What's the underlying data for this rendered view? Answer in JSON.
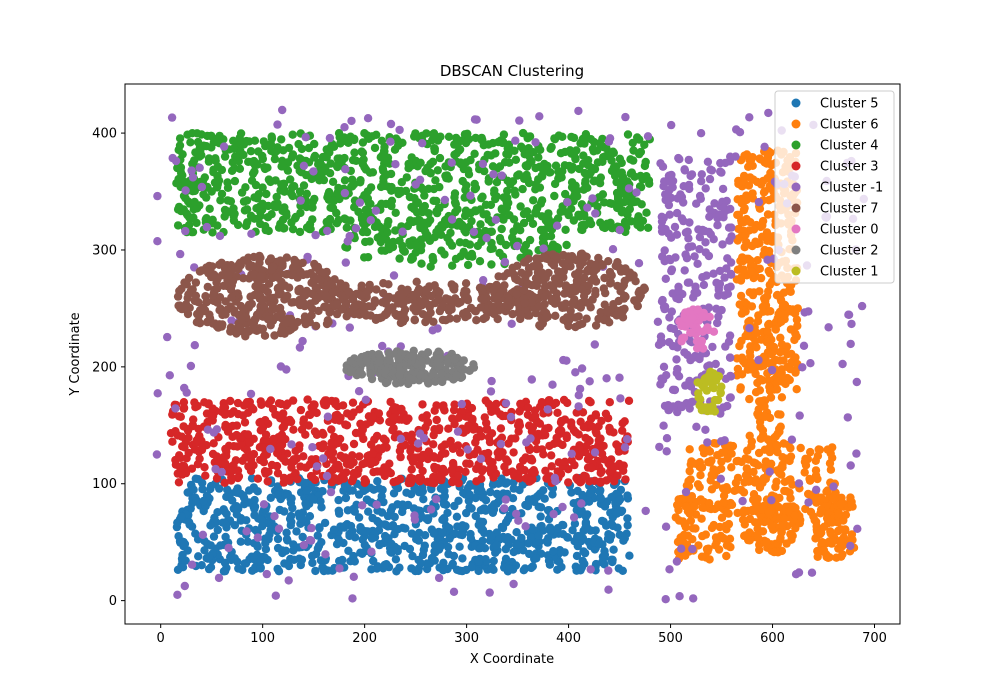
{
  "chart_data": {
    "type": "scatter",
    "title": "DBSCAN Clustering",
    "xlabel": "X Coordinate",
    "ylabel": "Y Coordinate",
    "xlim": [
      -35,
      725
    ],
    "ylim": [
      -20,
      442
    ],
    "xticks": [
      0,
      100,
      200,
      300,
      400,
      500,
      600,
      700
    ],
    "yticks": [
      0,
      100,
      200,
      300,
      400
    ],
    "grid": false,
    "legend_position": "top-right",
    "series": [
      {
        "name": "Cluster 5",
        "color": "#1f77b4",
        "regions": [
          {
            "shape": "rect",
            "x": [
              15,
              460
            ],
            "y": [
              25,
              105
            ],
            "count": 900
          }
        ]
      },
      {
        "name": "Cluster 6",
        "color": "#ff7f0e",
        "regions": [
          {
            "shape": "rect",
            "x": [
              565,
              625
            ],
            "y": [
              180,
              385
            ],
            "count": 330
          },
          {
            "shape": "rect",
            "x": [
              575,
              610
            ],
            "y": [
              125,
              250
            ],
            "count": 80
          },
          {
            "shape": "rect",
            "x": [
              515,
              665
            ],
            "y": [
              70,
              135
            ],
            "count": 200
          },
          {
            "shape": "rect",
            "x": [
              505,
              560
            ],
            "y": [
              35,
              90
            ],
            "count": 90
          },
          {
            "shape": "rect",
            "x": [
              640,
              680
            ],
            "y": [
              35,
              90
            ],
            "count": 90
          },
          {
            "shape": "ellipse",
            "cx": 598,
            "cy": 65,
            "rx": 30,
            "ry": 25,
            "count": 100
          }
        ]
      },
      {
        "name": "Cluster 4",
        "color": "#2ca02c",
        "regions": [
          {
            "shape": "rect",
            "x": [
              15,
              480
            ],
            "y": [
              315,
              400
            ],
            "count": 950
          },
          {
            "shape": "ellipse",
            "cx": 290,
            "cy": 305,
            "rx": 110,
            "ry": 20,
            "count": 130
          }
        ]
      },
      {
        "name": "Cluster 3",
        "color": "#d62728",
        "regions": [
          {
            "shape": "rect",
            "x": [
              10,
              460
            ],
            "y": [
              100,
              172
            ],
            "count": 800
          }
        ]
      },
      {
        "name": "Cluster -1",
        "color": "#9467bd",
        "regions": [
          {
            "shape": "rect",
            "x": [
              -5,
              690
            ],
            "y": [
              0,
              420
            ],
            "count": 330
          },
          {
            "shape": "rect",
            "x": [
              490,
              560
            ],
            "y": [
              160,
              380
            ],
            "count": 240
          }
        ]
      },
      {
        "name": "Cluster 7",
        "color": "#8c564b",
        "regions": [
          {
            "shape": "ellipse",
            "cx": 100,
            "cy": 260,
            "rx": 85,
            "ry": 35,
            "count": 350
          },
          {
            "shape": "ellipse",
            "cx": 260,
            "cy": 255,
            "rx": 115,
            "ry": 18,
            "count": 260
          },
          {
            "shape": "ellipse",
            "cx": 400,
            "cy": 265,
            "rx": 75,
            "ry": 33,
            "count": 280
          }
        ]
      },
      {
        "name": "Cluster 0",
        "color": "#e377c2",
        "regions": [
          {
            "shape": "ellipse",
            "cx": 525,
            "cy": 232,
            "rx": 18,
            "ry": 18,
            "count": 45
          }
        ]
      },
      {
        "name": "Cluster 2",
        "color": "#7f7f7f",
        "regions": [
          {
            "shape": "ellipse",
            "cx": 245,
            "cy": 200,
            "rx": 65,
            "ry": 15,
            "count": 200
          }
        ]
      },
      {
        "name": "Cluster 1",
        "color": "#bcbd22",
        "regions": [
          {
            "shape": "ellipse",
            "cx": 538,
            "cy": 178,
            "rx": 15,
            "ry": 18,
            "count": 40
          }
        ]
      }
    ]
  }
}
